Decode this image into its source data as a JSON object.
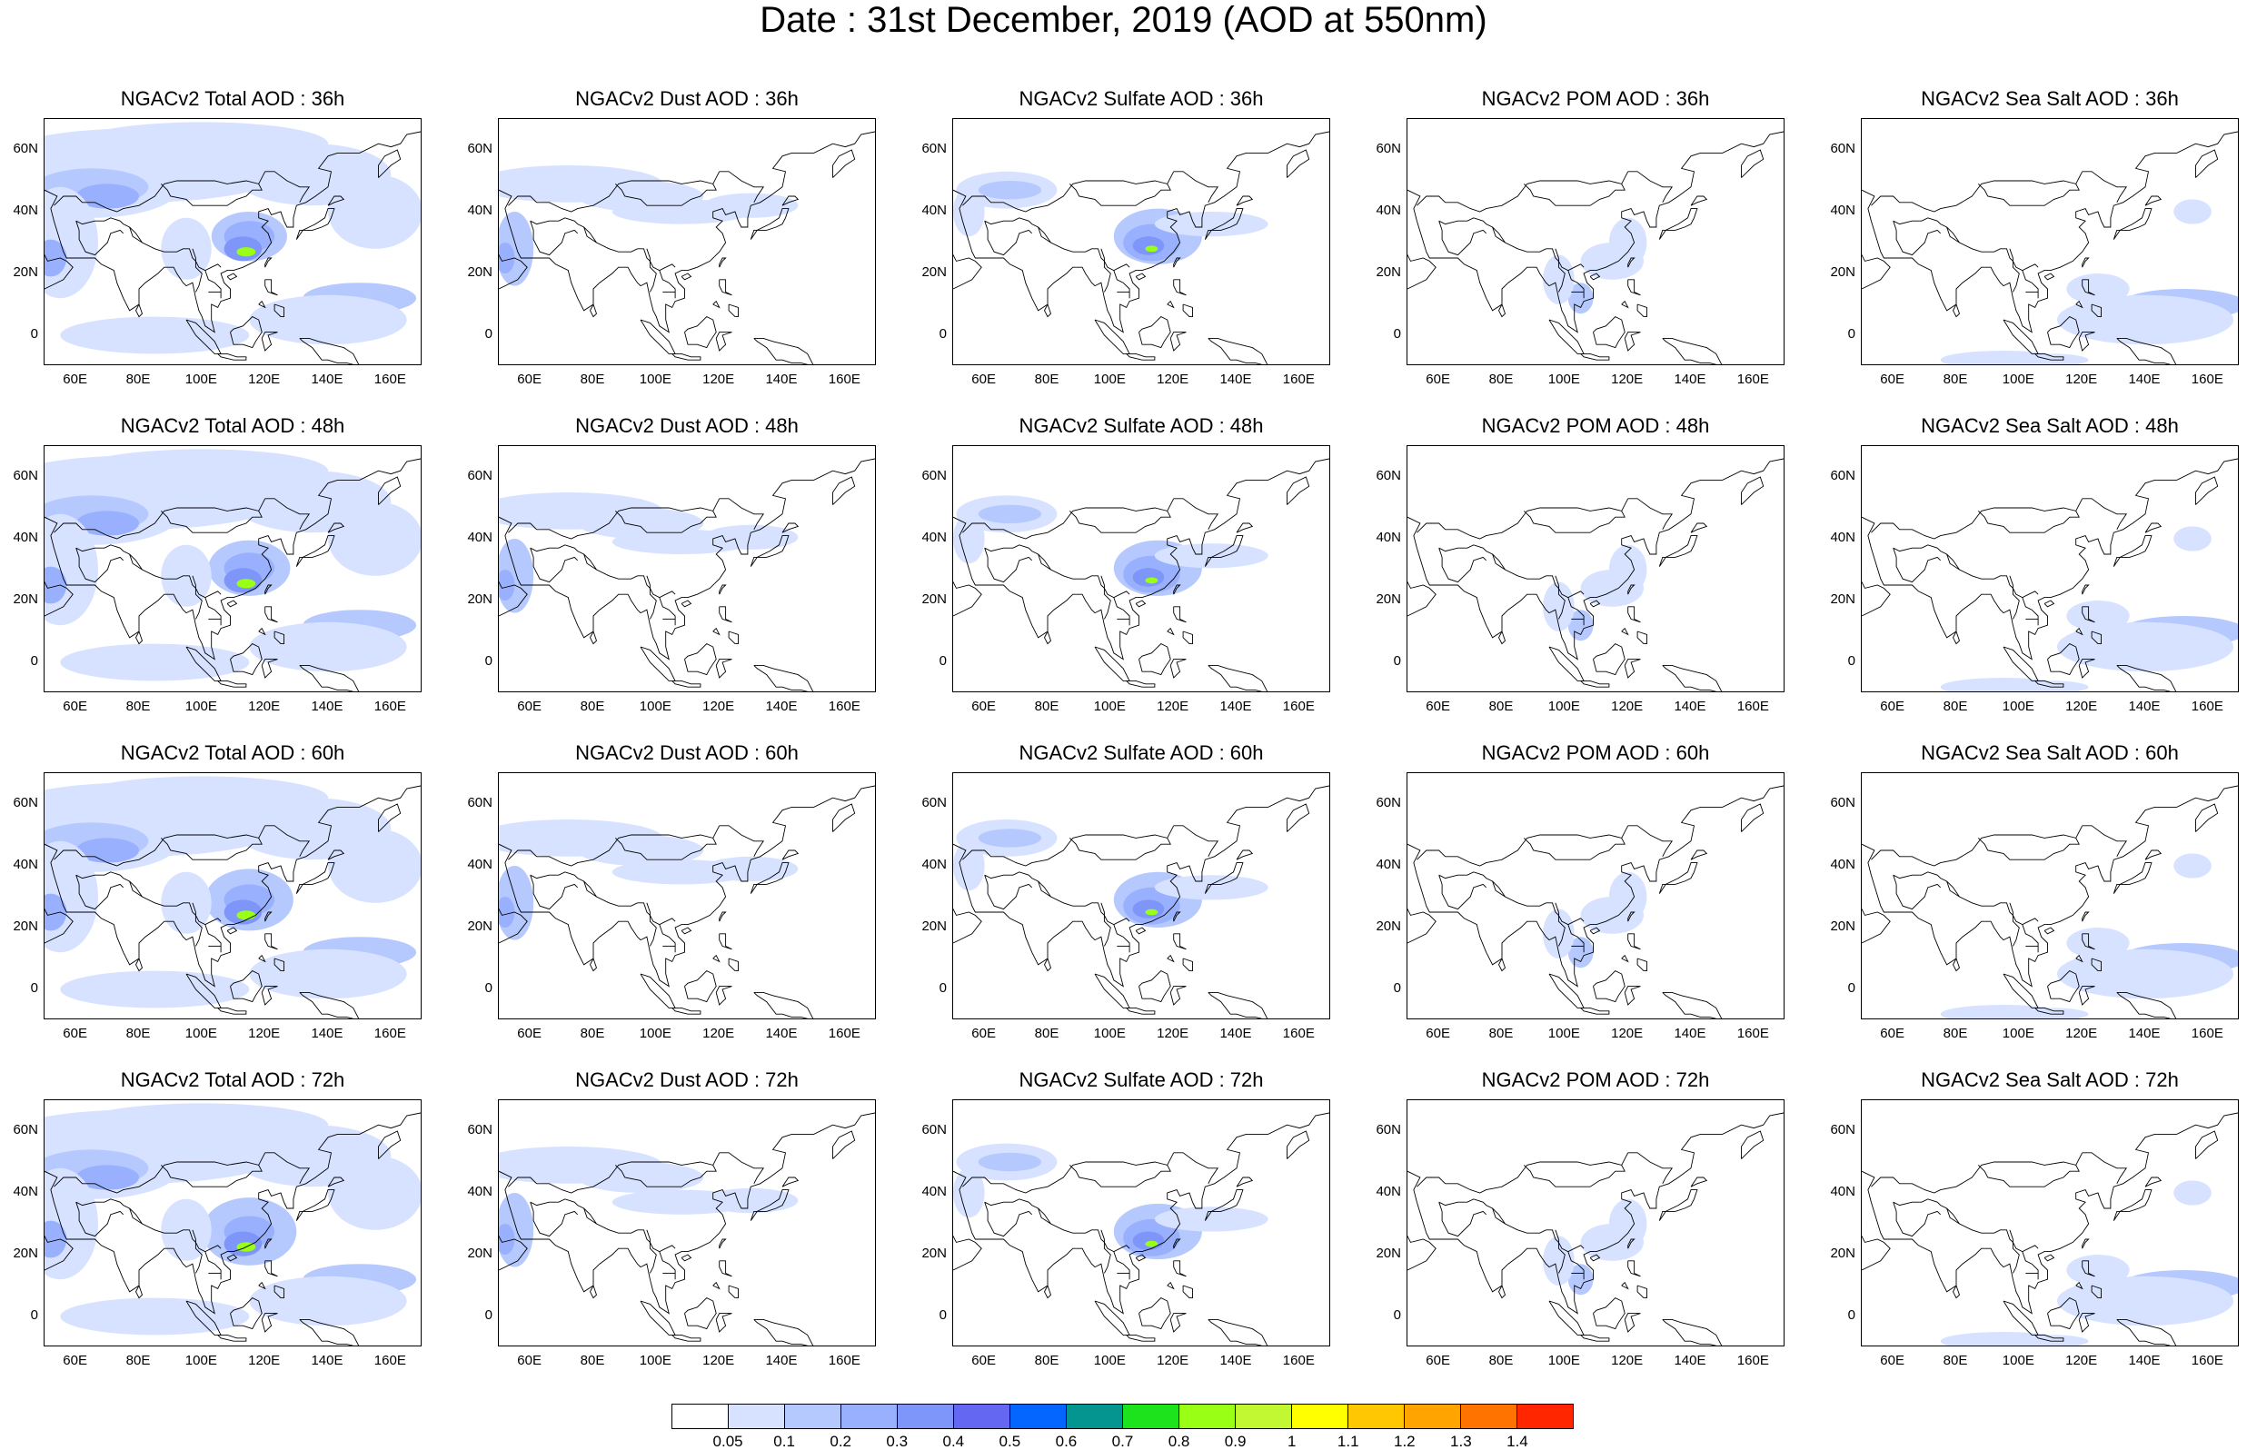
{
  "title": "Date : 31st December, 2019 (AOD at 550nm)",
  "x_ticks": [
    "60E",
    "80E",
    "100E",
    "120E",
    "140E",
    "160E"
  ],
  "y_ticks": [
    "60N",
    "40N",
    "20N",
    "0"
  ],
  "panels": [
    [
      {
        "title": "NGACv2 Total AOD : 36h",
        "field": "total",
        "lead": "36h"
      },
      {
        "title": "NGACv2 Dust AOD : 36h",
        "field": "dust",
        "lead": "36h"
      },
      {
        "title": "NGACv2 Sulfate AOD : 36h",
        "field": "sulfate",
        "lead": "36h"
      },
      {
        "title": "NGACv2 POM AOD : 36h",
        "field": "pom",
        "lead": "36h"
      },
      {
        "title": "NGACv2 Sea Salt AOD : 36h",
        "field": "seasalt",
        "lead": "36h"
      }
    ],
    [
      {
        "title": "NGACv2 Total AOD : 48h",
        "field": "total",
        "lead": "48h"
      },
      {
        "title": "NGACv2 Dust AOD : 48h",
        "field": "dust",
        "lead": "48h"
      },
      {
        "title": "NGACv2 Sulfate AOD : 48h",
        "field": "sulfate",
        "lead": "48h"
      },
      {
        "title": "NGACv2 POM AOD : 48h",
        "field": "pom",
        "lead": "48h"
      },
      {
        "title": "NGACv2 Sea Salt AOD : 48h",
        "field": "seasalt",
        "lead": "48h"
      }
    ],
    [
      {
        "title": "NGACv2 Total AOD : 60h",
        "field": "total",
        "lead": "60h"
      },
      {
        "title": "NGACv2 Dust AOD : 60h",
        "field": "dust",
        "lead": "60h"
      },
      {
        "title": "NGACv2 Sulfate AOD : 60h",
        "field": "sulfate",
        "lead": "60h"
      },
      {
        "title": "NGACv2 POM AOD : 60h",
        "field": "pom",
        "lead": "60h"
      },
      {
        "title": "NGACv2 Sea Salt AOD : 60h",
        "field": "seasalt",
        "lead": "60h"
      }
    ],
    [
      {
        "title": "NGACv2 Total AOD : 72h",
        "field": "total",
        "lead": "72h"
      },
      {
        "title": "NGACv2 Dust AOD : 72h",
        "field": "dust",
        "lead": "72h"
      },
      {
        "title": "NGACv2 Sulfate AOD : 72h",
        "field": "sulfate",
        "lead": "72h"
      },
      {
        "title": "NGACv2 POM AOD : 72h",
        "field": "pom",
        "lead": "72h"
      },
      {
        "title": "NGACv2 Sea Salt  AOD : 72h",
        "field": "seasalt",
        "lead": "72h"
      }
    ]
  ],
  "colorbar": {
    "labels": [
      "0.05",
      "0.1",
      "0.2",
      "0.3",
      "0.4",
      "0.5",
      "0.6",
      "0.7",
      "0.8",
      "0.9",
      "1",
      "1.1",
      "1.2",
      "1.3",
      "1.4"
    ],
    "colors": [
      "#ffffff",
      "#d6e2ff",
      "#b5c9ff",
      "#99b0fe",
      "#7e95f9",
      "#6367f1",
      "#0565ff",
      "#059591",
      "#1ce31c",
      "#99ff15",
      "#c1f832",
      "#ffff00",
      "#ffc702",
      "#ffa400",
      "#ff7400",
      "#ff2600"
    ]
  }
}
